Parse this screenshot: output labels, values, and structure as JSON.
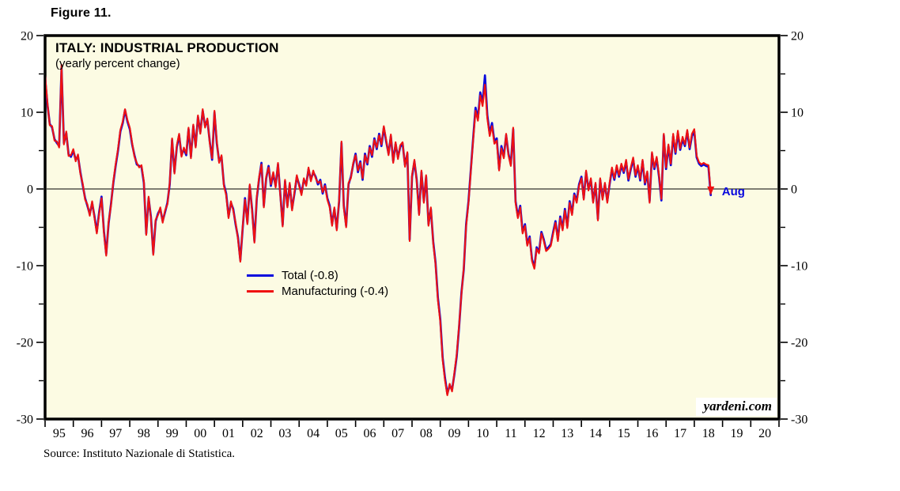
{
  "page": {
    "figure_label": "Figure 11.",
    "source_note": "Source: Instituto Nazionale di Statistica."
  },
  "chart": {
    "title": "ITALY: INDUSTRIAL PRODUCTION",
    "subtitle": "(yearly percent change)",
    "watermark": "yardeni.com",
    "end_point_label": "Aug",
    "colors": {
      "total": "#0808dd",
      "manufacturing": "#ef1111",
      "plot_background": "#fcfbe3",
      "axis": "#000000"
    },
    "legend": [
      {
        "label": "Total (-0.8)",
        "series": "total"
      },
      {
        "label": "Manufacturing (-0.4)",
        "series": "manufacturing"
      }
    ]
  },
  "chart_data": {
    "type": "line",
    "title": "ITALY: INDUSTRIAL PRODUCTION",
    "subtitle": "(yearly percent change)",
    "frequency": "monthly",
    "x_start": "1995-01",
    "x_end": "2018-08",
    "x_axis_range_years": [
      1995,
      2021
    ],
    "x_tick_labels": [
      "95",
      "96",
      "97",
      "98",
      "99",
      "00",
      "01",
      "02",
      "03",
      "04",
      "05",
      "06",
      "07",
      "08",
      "09",
      "10",
      "11",
      "12",
      "13",
      "14",
      "15",
      "16",
      "17",
      "18",
      "19",
      "20"
    ],
    "ylim": [
      -30,
      20
    ],
    "y_major_ticks": [
      20,
      10,
      0,
      -10,
      -20,
      -30
    ],
    "y_minor_ticks": [
      15,
      5,
      -5,
      -15,
      -25
    ],
    "zero_line": true,
    "grid": false,
    "legend_position": "inside-center-left",
    "latest_point_label": "Aug",
    "series": [
      {
        "name": "Total",
        "latest_value": -0.8,
        "color": "#0808dd",
        "values": [
          14.5,
          11.0,
          8.5,
          8.0,
          6.5,
          6.0,
          5.6,
          15.8,
          6.0,
          7.3,
          4.5,
          4.2,
          5.0,
          3.8,
          4.3,
          2.2,
          0.5,
          -1.2,
          -2.2,
          -3.3,
          -1.8,
          -3.6,
          -5.6,
          -3.0,
          -1.0,
          -5.5,
          -8.5,
          -4.5,
          -2.0,
          0.8,
          3.0,
          5.0,
          7.5,
          8.6,
          10.3,
          8.8,
          7.8,
          5.8,
          4.4,
          3.2,
          3.0,
          2.9,
          0.8,
          -5.8,
          -1.2,
          -3.6,
          -8.4,
          -4.2,
          -3.2,
          -2.6,
          -4.2,
          -3.0,
          -1.8,
          0.6,
          6.4,
          2.2,
          5.5,
          7.0,
          4.4,
          5.2,
          4.4,
          7.8,
          4.2,
          8.2,
          5.6,
          9.4,
          7.4,
          10.2,
          8.2,
          9.0,
          6.2,
          3.8,
          10.0,
          6.0,
          3.6,
          4.2,
          0.6,
          -0.6,
          -3.6,
          -1.8,
          -2.6,
          -4.6,
          -6.3,
          -9.3,
          -5.2,
          -1.2,
          -4.4,
          0.4,
          -2.6,
          -6.8,
          -1.2,
          1.4,
          3.4,
          -2.2,
          1.4,
          3.0,
          0.4,
          2.0,
          0.4,
          3.2,
          -0.6,
          -4.7,
          1.0,
          -2.2,
          0.6,
          -2.6,
          -0.6,
          1.6,
          0.6,
          -0.6,
          1.2,
          0.6,
          2.6,
          1.2,
          2.2,
          1.6,
          0.6,
          1.2,
          -0.6,
          0.6,
          -1.2,
          -2.2,
          -4.6,
          -2.6,
          -5.2,
          -1.6,
          6.0,
          -2.2,
          -4.8,
          0.6,
          1.6,
          3.2,
          4.6,
          2.2,
          3.6,
          1.2,
          4.6,
          3.2,
          5.6,
          4.2,
          6.6,
          5.2,
          7.2,
          5.6,
          8.0,
          6.2,
          4.6,
          6.9,
          3.6,
          5.9,
          4.1,
          5.5,
          5.9,
          3.1,
          4.6,
          -6.6,
          1.6,
          3.6,
          1.2,
          -3.2,
          2.2,
          -1.6,
          1.6,
          -4.6,
          -2.6,
          -6.9,
          -9.6,
          -14.2,
          -17.0,
          -22.0,
          -24.6,
          -26.7,
          -25.6,
          -26.2,
          -24.2,
          -21.8,
          -18.0,
          -13.5,
          -10.5,
          -4.6,
          -1.6,
          2.6,
          6.6,
          10.6,
          9.2,
          12.6,
          11.2,
          14.8,
          9.6,
          7.2,
          8.6,
          6.2,
          6.6,
          2.6,
          5.6,
          4.2,
          7.0,
          4.6,
          3.2,
          7.8,
          -1.6,
          -3.6,
          -2.2,
          -5.6,
          -4.6,
          -7.2,
          -6.2,
          -9.2,
          -10.2,
          -7.6,
          -8.2,
          -5.6,
          -6.6,
          -7.9,
          -7.6,
          -7.2,
          -5.6,
          -4.2,
          -6.6,
          -3.6,
          -5.2,
          -2.6,
          -4.9,
          -1.6,
          -3.2,
          -0.6,
          -1.6,
          0.6,
          1.6,
          -1.2,
          2.2,
          0.0,
          1.2,
          -1.6,
          0.6,
          -3.9,
          1.2,
          -1.2,
          0.6,
          -1.6,
          0.6,
          2.6,
          1.2,
          2.9,
          1.6,
          3.1,
          2.1,
          3.6,
          1.1,
          2.6,
          3.9,
          1.6,
          2.9,
          1.1,
          3.6,
          0.6,
          2.1,
          -1.6,
          4.6,
          2.6,
          4.0,
          1.6,
          -1.5,
          7.0,
          2.6,
          5.6,
          3.1,
          6.9,
          4.6,
          7.3,
          5.1,
          6.5,
          5.6,
          7.5,
          5.2,
          6.9,
          7.5,
          4.1,
          3.3,
          3.0,
          3.2,
          3.0,
          2.9,
          -0.8
        ]
      },
      {
        "name": "Manufacturing",
        "latest_value": -0.4,
        "color": "#ef1111",
        "values": [
          14.8,
          11.2,
          8.3,
          8.2,
          6.3,
          6.2,
          5.4,
          16.2,
          5.8,
          7.5,
          4.3,
          4.4,
          5.2,
          3.6,
          4.5,
          2.0,
          0.7,
          -1.4,
          -2.0,
          -3.5,
          -1.6,
          -3.8,
          -5.8,
          -3.2,
          -1.2,
          -5.7,
          -8.7,
          -4.3,
          -2.2,
          1.0,
          3.2,
          5.2,
          7.7,
          8.8,
          10.4,
          9.0,
          8.0,
          6.0,
          4.2,
          3.4,
          2.8,
          3.1,
          1.0,
          -6.0,
          -1.0,
          -3.8,
          -8.6,
          -4.0,
          -3.4,
          -2.4,
          -4.4,
          -2.8,
          -2.0,
          0.8,
          6.6,
          2.0,
          5.7,
          7.2,
          4.2,
          5.4,
          4.6,
          8.0,
          4.0,
          8.4,
          5.4,
          9.6,
          7.2,
          10.4,
          8.0,
          9.2,
          6.0,
          4.0,
          10.2,
          6.2,
          3.4,
          4.4,
          0.4,
          -0.8,
          -3.8,
          -1.6,
          -2.8,
          -4.4,
          -6.5,
          -9.5,
          -5.0,
          -1.4,
          -4.6,
          0.6,
          -2.8,
          -7.0,
          -1.0,
          1.6,
          3.2,
          -2.4,
          1.6,
          2.8,
          0.6,
          2.2,
          0.2,
          3.4,
          -0.8,
          -4.9,
          1.2,
          -2.4,
          0.8,
          -2.8,
          -0.4,
          1.8,
          0.4,
          -0.8,
          1.4,
          0.4,
          2.8,
          1.0,
          2.4,
          1.4,
          0.8,
          1.0,
          -0.4,
          0.4,
          -1.4,
          -2.4,
          -4.8,
          -2.4,
          -5.4,
          -1.4,
          6.2,
          -2.4,
          -5.0,
          0.8,
          1.4,
          3.4,
          4.4,
          2.4,
          3.4,
          1.4,
          4.4,
          3.4,
          5.4,
          4.4,
          6.4,
          5.4,
          7.0,
          5.8,
          8.2,
          6.4,
          4.4,
          7.1,
          3.4,
          6.1,
          3.9,
          5.7,
          6.1,
          2.9,
          4.8,
          -6.8,
          1.8,
          3.8,
          1.0,
          -3.4,
          2.4,
          -1.8,
          1.8,
          -4.8,
          -2.4,
          -7.1,
          -9.8,
          -14.5,
          -17.3,
          -22.3,
          -24.9,
          -26.9,
          -25.4,
          -26.4,
          -24.0,
          -21.6,
          -17.8,
          -13.7,
          -10.3,
          -4.8,
          -1.8,
          2.4,
          6.4,
          10.2,
          8.9,
          12.2,
          10.8,
          13.6,
          9.2,
          6.9,
          8.2,
          5.9,
          6.3,
          2.4,
          5.3,
          4.0,
          7.2,
          4.4,
          3.0,
          8.0,
          -1.8,
          -3.8,
          -2.4,
          -5.8,
          -4.8,
          -7.4,
          -6.4,
          -9.4,
          -10.4,
          -7.8,
          -8.4,
          -5.8,
          -6.8,
          -8.1,
          -7.8,
          -7.4,
          -5.8,
          -4.4,
          -6.8,
          -3.8,
          -5.4,
          -2.8,
          -5.1,
          -1.8,
          -3.4,
          -0.8,
          -1.8,
          0.4,
          1.4,
          -1.4,
          2.4,
          -0.2,
          1.4,
          -1.8,
          0.8,
          -4.1,
          1.4,
          -1.4,
          0.8,
          -1.8,
          0.8,
          2.8,
          1.4,
          3.1,
          1.8,
          3.3,
          2.3,
          3.8,
          1.3,
          2.8,
          4.1,
          1.8,
          3.1,
          1.3,
          3.8,
          0.8,
          2.3,
          -1.8,
          4.8,
          2.8,
          4.2,
          1.8,
          -1.3,
          7.2,
          2.8,
          5.8,
          3.3,
          7.2,
          4.8,
          7.6,
          5.3,
          6.8,
          5.8,
          7.7,
          5.4,
          7.2,
          7.8,
          4.3,
          3.5,
          3.2,
          3.4,
          3.2,
          3.1,
          -0.4
        ]
      }
    ]
  }
}
